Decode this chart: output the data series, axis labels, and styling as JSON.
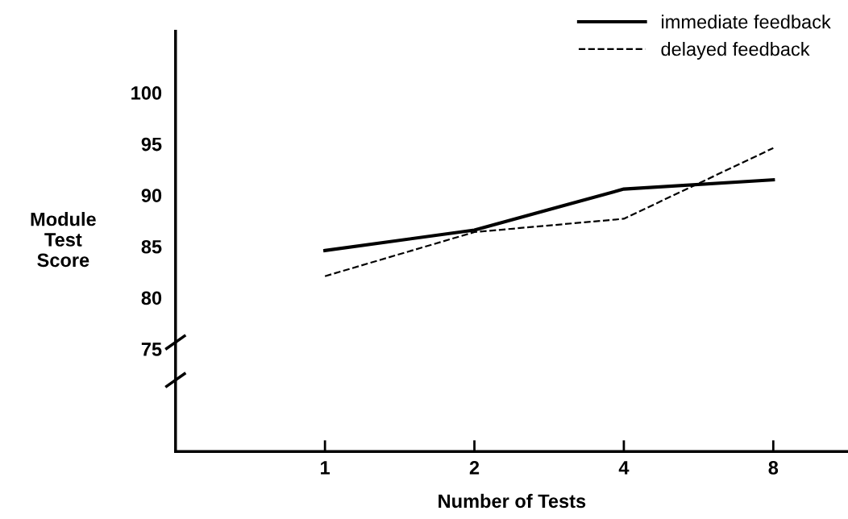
{
  "chart_data": {
    "type": "line",
    "xlabel": "Number of Tests",
    "ylabel": "Module\nTest\nScore",
    "categories": [
      "1",
      "2",
      "4",
      "8"
    ],
    "series": [
      {
        "name": "immediate feedback",
        "color": "#000000",
        "line_style": "solid",
        "values": [
          84.6,
          86.6,
          90.6,
          91.5
        ]
      },
      {
        "name": "delayed feedback",
        "color": "#000000",
        "line_style": "dashed",
        "values": [
          82.1,
          86.4,
          87.7,
          94.6
        ]
      }
    ],
    "ylim": [
      65,
      106
    ],
    "yticks": [
      75,
      80,
      85,
      90,
      95,
      100
    ],
    "grid": false,
    "legend": "top right",
    "marker": "none"
  }
}
